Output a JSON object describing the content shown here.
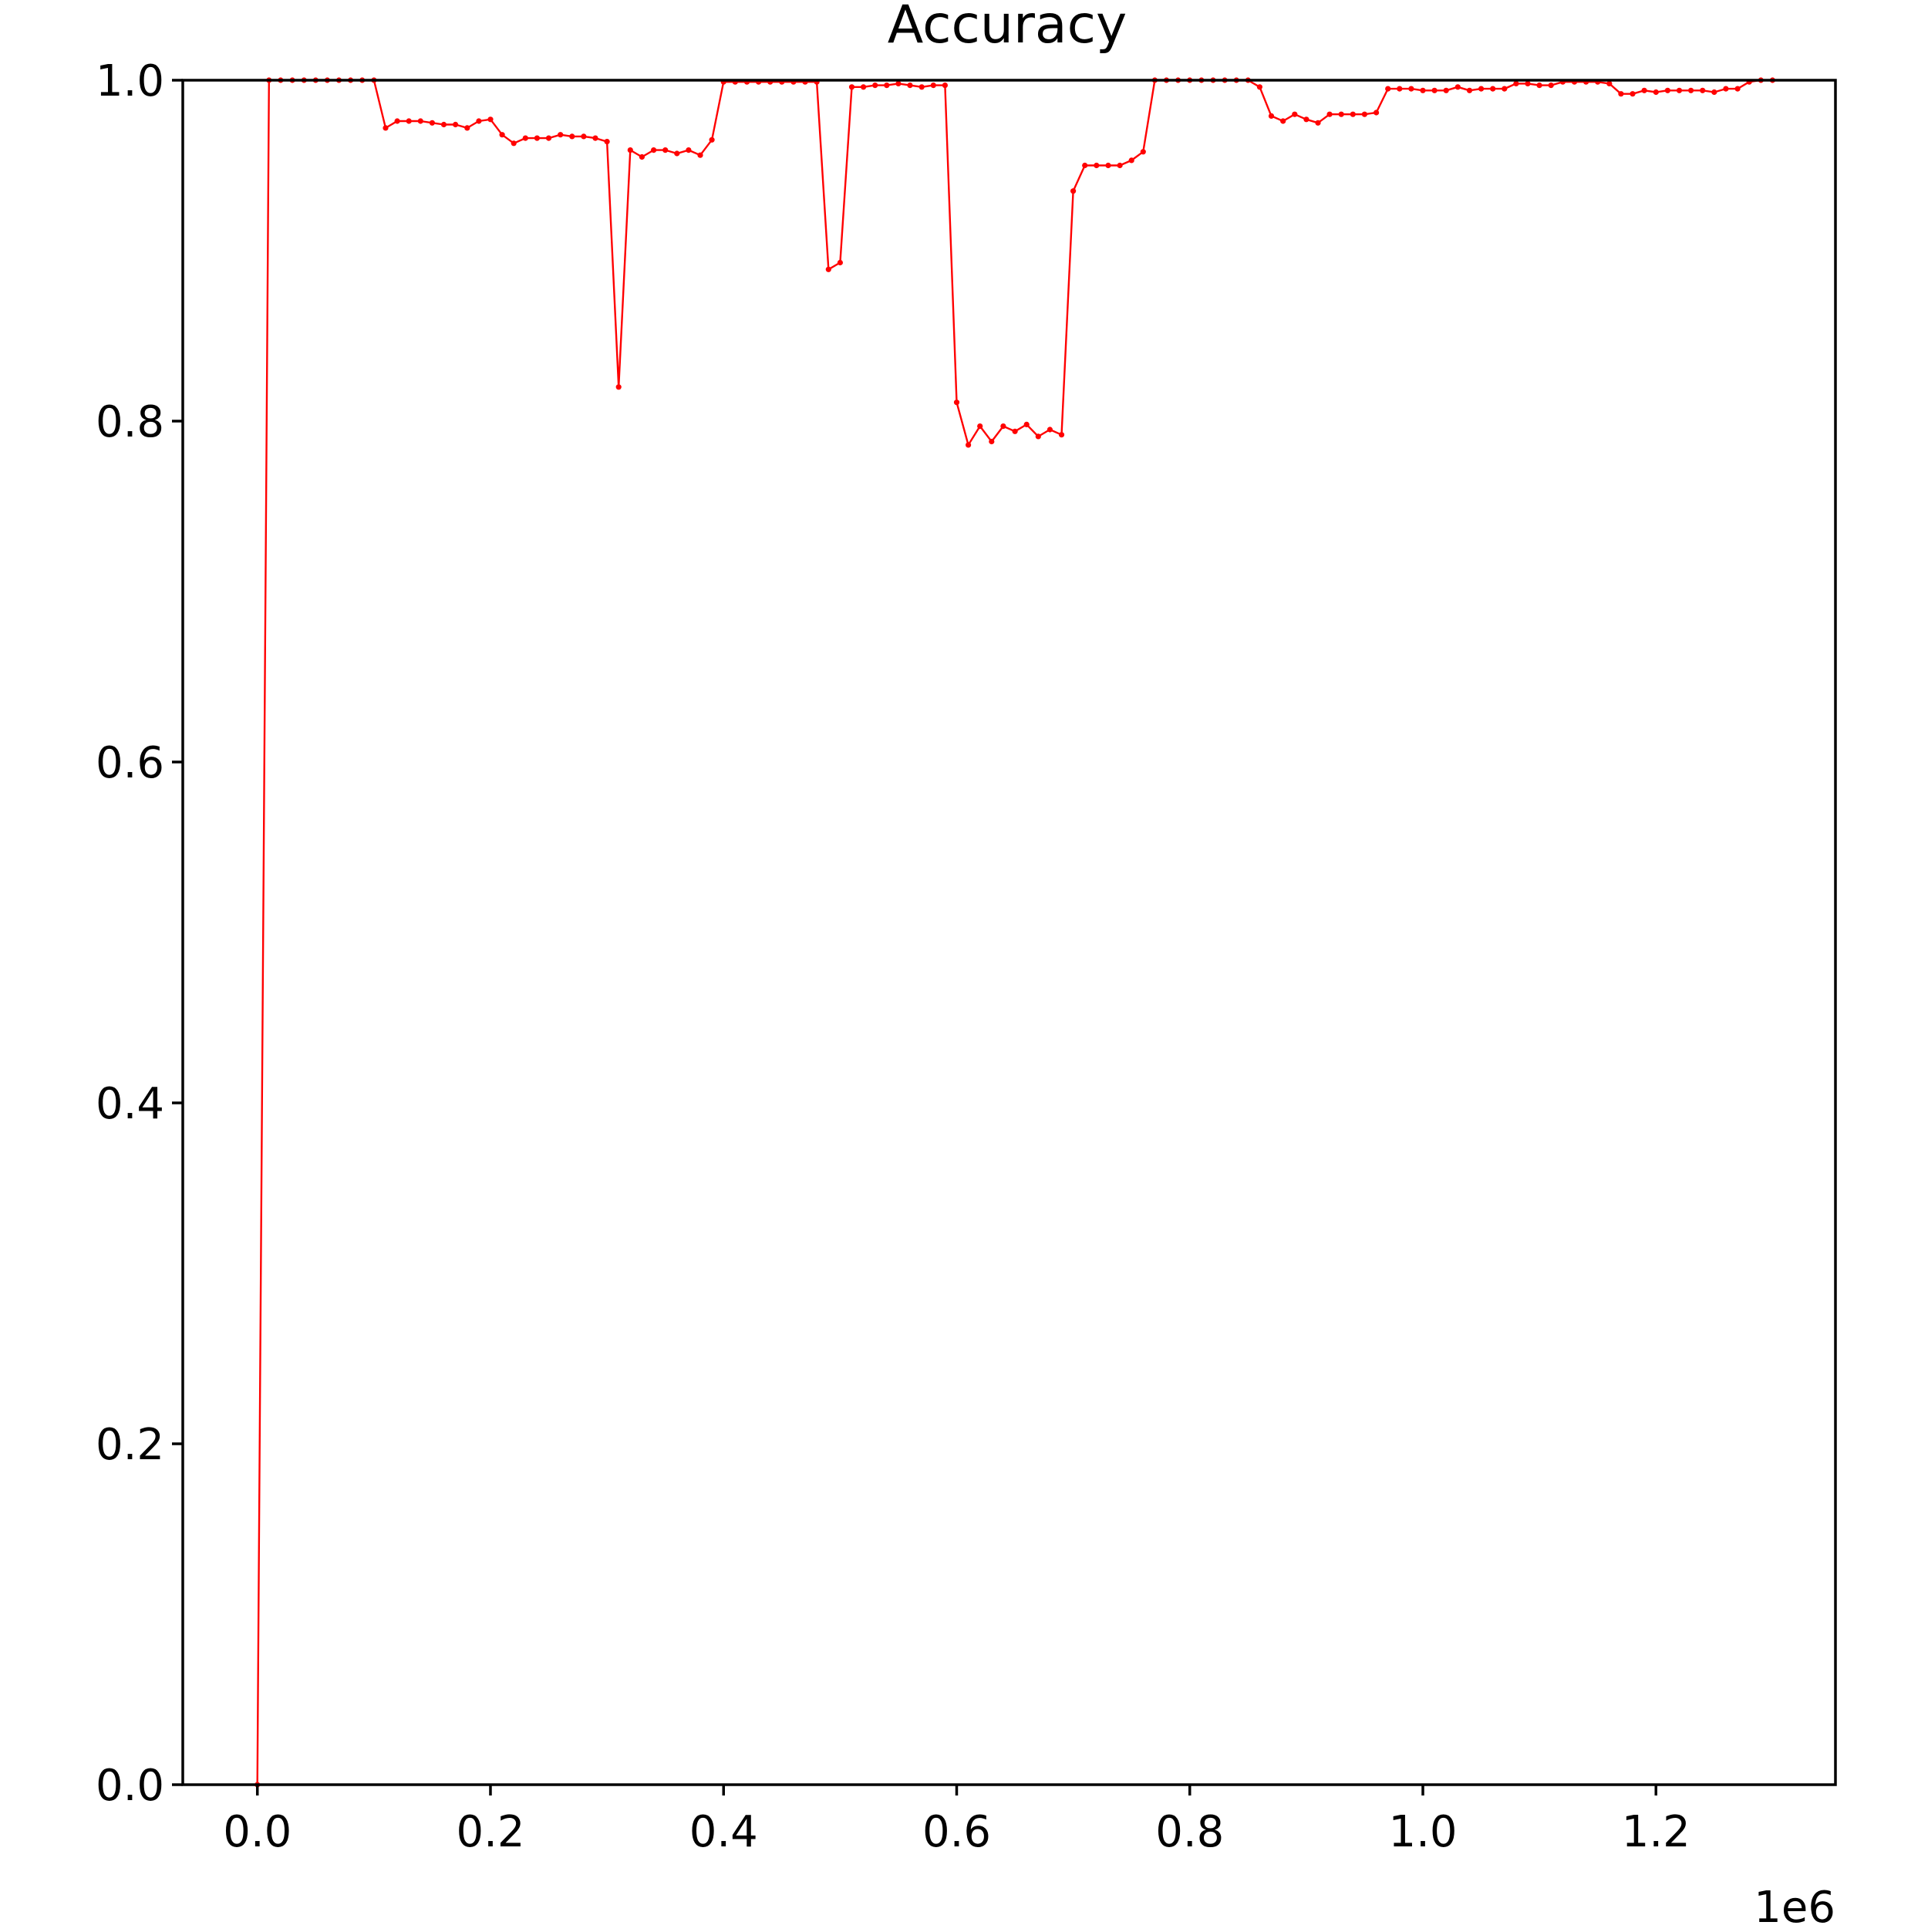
{
  "chart_data": {
    "type": "line",
    "title": "Accuracy",
    "xlabel": "",
    "ylabel": "",
    "x_offset_label": "1e6",
    "xlim": [
      -64000,
      1354000
    ],
    "ylim": [
      0.0,
      1.0
    ],
    "x_ticks": [
      0,
      200000,
      400000,
      600000,
      800000,
      1000000,
      1200000
    ],
    "x_tick_labels": [
      "0.0",
      "0.2",
      "0.4",
      "0.6",
      "0.8",
      "1.0",
      "1.2"
    ],
    "y_ticks": [
      0.0,
      0.2,
      0.4,
      0.6,
      0.8,
      1.0
    ],
    "y_tick_labels": [
      "0.0",
      "0.2",
      "0.4",
      "0.6",
      "0.8",
      "1.0"
    ],
    "grid": false,
    "legend": "none",
    "series": [
      {
        "color": "#ff0000",
        "marker": "dot",
        "points": [
          [
            0,
            0.0
          ],
          [
            10000,
            1.0
          ],
          [
            20000,
            1.0
          ],
          [
            30000,
            1.0
          ],
          [
            40000,
            1.0
          ],
          [
            50000,
            1.0
          ],
          [
            60000,
            1.0
          ],
          [
            70000,
            1.0
          ],
          [
            80000,
            1.0
          ],
          [
            90000,
            1.0
          ],
          [
            100000,
            1.0
          ],
          [
            110000,
            0.972
          ],
          [
            120000,
            0.976
          ],
          [
            130000,
            0.976
          ],
          [
            140000,
            0.976
          ],
          [
            150000,
            0.975
          ],
          [
            160000,
            0.974
          ],
          [
            170000,
            0.974
          ],
          [
            180000,
            0.972
          ],
          [
            190000,
            0.976
          ],
          [
            200000,
            0.977
          ],
          [
            210000,
            0.968
          ],
          [
            220000,
            0.963
          ],
          [
            230000,
            0.966
          ],
          [
            240000,
            0.966
          ],
          [
            250000,
            0.966
          ],
          [
            260000,
            0.968
          ],
          [
            270000,
            0.967
          ],
          [
            280000,
            0.967
          ],
          [
            290000,
            0.966
          ],
          [
            300000,
            0.964
          ],
          [
            310000,
            0.82
          ],
          [
            320000,
            0.959
          ],
          [
            330000,
            0.955
          ],
          [
            340000,
            0.959
          ],
          [
            350000,
            0.959
          ],
          [
            360000,
            0.957
          ],
          [
            370000,
            0.959
          ],
          [
            380000,
            0.956
          ],
          [
            390000,
            0.965
          ],
          [
            400000,
            0.999
          ],
          [
            410000,
            0.999
          ],
          [
            420000,
            0.999
          ],
          [
            430000,
            0.999
          ],
          [
            440000,
            0.999
          ],
          [
            450000,
            0.999
          ],
          [
            460000,
            0.999
          ],
          [
            470000,
            0.999
          ],
          [
            480000,
            0.999
          ],
          [
            490000,
            0.889
          ],
          [
            500000,
            0.893
          ],
          [
            510000,
            0.996
          ],
          [
            520000,
            0.996
          ],
          [
            530000,
            0.997
          ],
          [
            540000,
            0.997
          ],
          [
            550000,
            0.998
          ],
          [
            560000,
            0.997
          ],
          [
            570000,
            0.996
          ],
          [
            580000,
            0.997
          ],
          [
            590000,
            0.997
          ],
          [
            600000,
            0.811
          ],
          [
            610000,
            0.786
          ],
          [
            620000,
            0.797
          ],
          [
            630000,
            0.788
          ],
          [
            640000,
            0.797
          ],
          [
            650000,
            0.794
          ],
          [
            660000,
            0.798
          ],
          [
            670000,
            0.791
          ],
          [
            680000,
            0.795
          ],
          [
            690000,
            0.792
          ],
          [
            700000,
            0.935
          ],
          [
            710000,
            0.95
          ],
          [
            720000,
            0.95
          ],
          [
            730000,
            0.95
          ],
          [
            740000,
            0.95
          ],
          [
            750000,
            0.953
          ],
          [
            760000,
            0.958
          ],
          [
            770000,
            1.0
          ],
          [
            780000,
            1.0
          ],
          [
            790000,
            1.0
          ],
          [
            800000,
            1.0
          ],
          [
            810000,
            1.0
          ],
          [
            820000,
            1.0
          ],
          [
            830000,
            1.0
          ],
          [
            840000,
            1.0
          ],
          [
            850000,
            1.0
          ],
          [
            860000,
            0.996
          ],
          [
            870000,
            0.979
          ],
          [
            880000,
            0.976
          ],
          [
            890000,
            0.98
          ],
          [
            900000,
            0.977
          ],
          [
            910000,
            0.975
          ],
          [
            920000,
            0.98
          ],
          [
            930000,
            0.98
          ],
          [
            940000,
            0.98
          ],
          [
            950000,
            0.98
          ],
          [
            960000,
            0.981
          ],
          [
            970000,
            0.995
          ],
          [
            980000,
            0.995
          ],
          [
            990000,
            0.995
          ],
          [
            1000000,
            0.994
          ],
          [
            1010000,
            0.994
          ],
          [
            1020000,
            0.994
          ],
          [
            1030000,
            0.996
          ],
          [
            1040000,
            0.994
          ],
          [
            1050000,
            0.995
          ],
          [
            1060000,
            0.995
          ],
          [
            1070000,
            0.995
          ],
          [
            1080000,
            0.998
          ],
          [
            1090000,
            0.998
          ],
          [
            1100000,
            0.997
          ],
          [
            1110000,
            0.997
          ],
          [
            1120000,
            0.999
          ],
          [
            1130000,
            0.999
          ],
          [
            1140000,
            0.999
          ],
          [
            1150000,
            0.999
          ],
          [
            1160000,
            0.998
          ],
          [
            1170000,
            0.992
          ],
          [
            1180000,
            0.992
          ],
          [
            1190000,
            0.994
          ],
          [
            1200000,
            0.993
          ],
          [
            1210000,
            0.994
          ],
          [
            1220000,
            0.994
          ],
          [
            1230000,
            0.994
          ],
          [
            1240000,
            0.994
          ],
          [
            1250000,
            0.993
          ],
          [
            1260000,
            0.995
          ],
          [
            1270000,
            0.995
          ],
          [
            1280000,
            0.999
          ],
          [
            1290000,
            1.0
          ],
          [
            1300000,
            1.0
          ]
        ]
      },
      {
        "color": "#1f77b4",
        "marker": "none",
        "points": [
          [
            0,
            0.0
          ],
          [
            1300000,
            0.0
          ]
        ]
      }
    ]
  }
}
